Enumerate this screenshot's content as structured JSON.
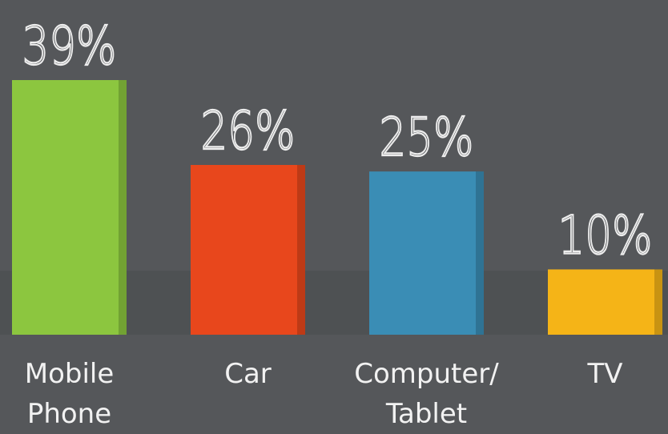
{
  "chart_data": {
    "type": "bar",
    "categories": [
      "Mobile Phone",
      "Car",
      "Computer/ Tablet",
      "TV"
    ],
    "values": [
      39,
      26,
      25,
      10
    ],
    "value_labels": [
      "39%",
      "26%",
      "25%",
      "10%"
    ],
    "colors": [
      "#8cc63f",
      "#e8471c",
      "#3a8db5",
      "#f5b417"
    ]
  }
}
